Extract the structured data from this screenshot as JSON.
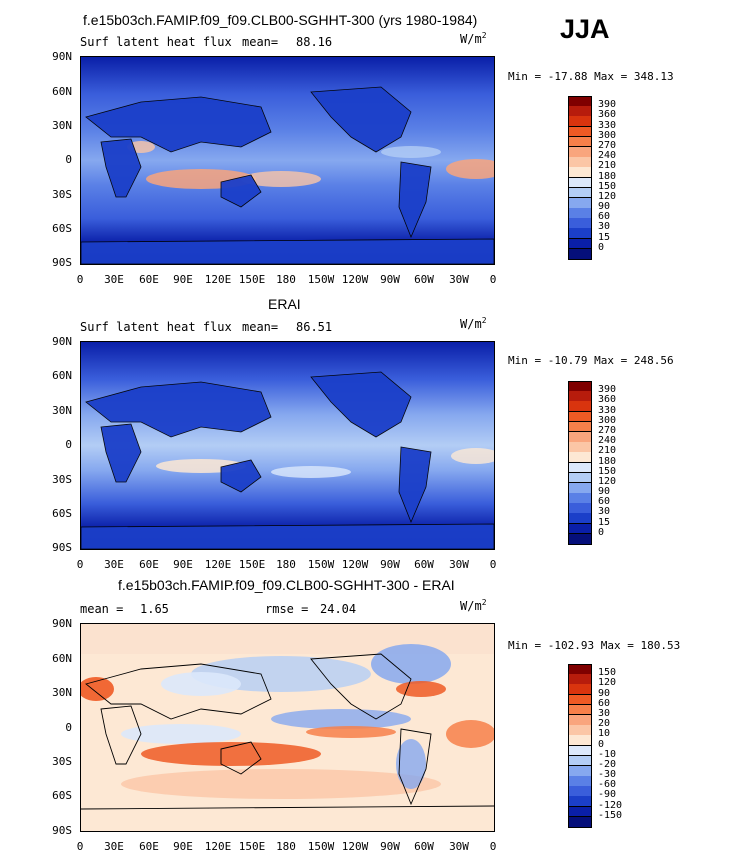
{
  "season": "JJA",
  "panel1": {
    "title": "f.e15b03ch.FAMIP.f09_f09.CLB00-SGHHT-300 (yrs 1980-1984)",
    "variable": "Surf latent heat flux",
    "mean_label": "mean=",
    "mean_value": "88.16",
    "units": "W/m",
    "units_sup": "2",
    "min_max": "Min = -17.88 Max = 348.13"
  },
  "panel2": {
    "title": "ERAI",
    "variable": "Surf latent heat flux",
    "mean_label": "mean=",
    "mean_value": "86.51",
    "units": "W/m",
    "units_sup": "2",
    "min_max": "Min = -10.79 Max = 248.56"
  },
  "panel3": {
    "title": "f.e15b03ch.FAMIP.f09_f09.CLB00-SGHHT-300 - ERAI",
    "mean_label": "mean =",
    "mean_value": "1.65",
    "rmse_label": "rmse =",
    "rmse_value": "24.04",
    "units": "W/m",
    "units_sup": "2",
    "min_max": "Min = -102.93 Max = 180.53"
  },
  "lat_ticks": [
    "90N",
    "60N",
    "30N",
    "0",
    "30S",
    "60S",
    "90S"
  ],
  "lon_ticks": [
    "0",
    "30E",
    "60E",
    "90E",
    "120E",
    "150E",
    "180",
    "150W",
    "120W",
    "90W",
    "60W",
    "30W",
    "0"
  ],
  "colorbar_abs": {
    "labels": [
      "390",
      "360",
      "330",
      "300",
      "270",
      "240",
      "210",
      "180",
      "150",
      "120",
      "90",
      "60",
      "30",
      "15",
      "0"
    ],
    "colors": [
      "#7f0000",
      "#b71c0c",
      "#d9340e",
      "#ef5a24",
      "#f7804a",
      "#f9a57d",
      "#fbc6a6",
      "#fde8d4",
      "#dce8fb",
      "#b3cdf5",
      "#86a8ef",
      "#5a80e6",
      "#3a5edb",
      "#1b3fc9",
      "#0a1fa8",
      "#050f7a"
    ]
  },
  "colorbar_diff": {
    "labels": [
      "150",
      "120",
      "90",
      "60",
      "30",
      "20",
      "10",
      "0",
      "-10",
      "-20",
      "-30",
      "-60",
      "-90",
      "-120",
      "-150"
    ],
    "colors": [
      "#7f0000",
      "#b71c0c",
      "#d9340e",
      "#ef5a24",
      "#f7804a",
      "#f9a57d",
      "#fbc6a6",
      "#fde8d4",
      "#dce8fb",
      "#b3cdf5",
      "#86a8ef",
      "#5a80e6",
      "#3a5edb",
      "#1b3fc9",
      "#0a1fa8",
      "#050f7a"
    ]
  },
  "icons": {
    "map_field": "global-contour-map"
  }
}
